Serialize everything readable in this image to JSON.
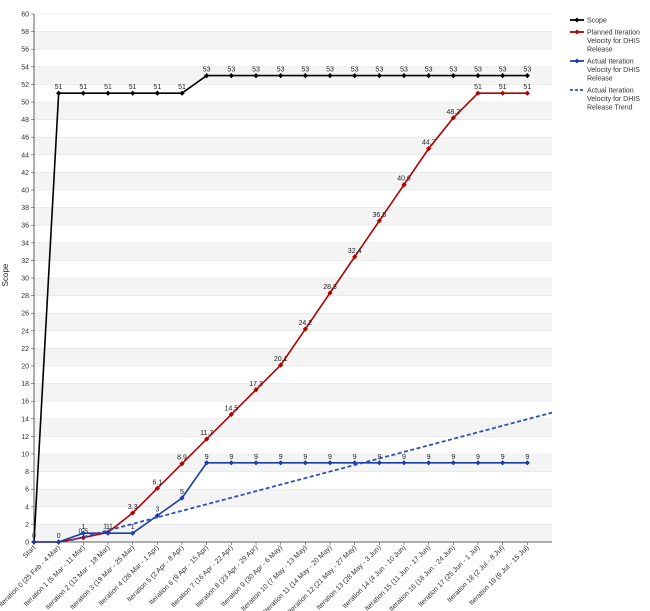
{
  "chart_data": {
    "type": "line",
    "title": "",
    "xlabel": "",
    "ylabel": "Scope",
    "ylim": [
      0,
      60
    ],
    "y_tick_step": 2,
    "grid": true,
    "legend_position": "right",
    "categories": [
      "Start",
      "Iteration 0 (25 Feb - 4 Mar)",
      "Iteration 1 (5 Mar - 11 Mar)",
      "Iteration 2 (12 Mar - 18 Mar)",
      "Iteration 3 (19 Mar - 25 Mar)",
      "Iteration 4 (26 Mar - 1 Apr)",
      "Iteration 5 (2 Apr - 8 Apr)",
      "Iteration 6 (9 Apr - 15 Apr)",
      "Iteration 7 (16 Apr - 22 Apr)",
      "Iteration 8 (23 Apr - 29 Apr)",
      "Iteration 9 (30 Apr - 6 May)",
      "Iteration 10 (7 May - 13 May)",
      "Iteration 11 (14 May - 20 May)",
      "Iteration 12 (21 May - 27 May)",
      "Iteration 13 (28 May - 3 Jun)",
      "Iteration 14 (4 Jun - 10 Jun)",
      "Iteration 15 (11 Jun - 17 Jun)",
      "Iteration 16 (18 Jun - 24 Jun)",
      "Iteration 17 (25 Jun - 1 Jul)",
      "Iteration 18 (2 Jul - 8 Jul)",
      "Iteration 19 (9 Jul - 15 Jul)"
    ],
    "series": [
      {
        "name": "Scope",
        "color": "#000000",
        "style": "solid",
        "values": [
          0,
          51,
          51,
          51,
          51,
          51,
          51,
          53,
          53,
          53,
          53,
          53,
          53,
          53,
          53,
          53,
          53,
          53,
          53,
          53,
          53
        ],
        "labels": [
          "0",
          "51",
          "51",
          "51",
          "51",
          "51",
          "51",
          "53",
          "53",
          "53",
          "53",
          "53",
          "53",
          "53",
          "53",
          "53",
          "53",
          "53",
          "53",
          "53",
          "53"
        ]
      },
      {
        "name": "Planned Iteration Velocity for DHIS Release",
        "color": "#b00000",
        "style": "solid",
        "values": [
          0,
          0,
          0.5,
          1.1,
          3.3,
          6.1,
          8.9,
          11.7,
          14.5,
          17.3,
          20.1,
          24.2,
          28.3,
          32.4,
          36.5,
          40.6,
          44.7,
          48.2,
          51,
          51,
          51
        ],
        "labels": [
          "",
          "0",
          "0.5",
          "1.1",
          "3.3",
          "6.1",
          "8.9",
          "11.7",
          "14.5",
          "17.3",
          "20.1",
          "24.2",
          "28.3",
          "32.4",
          "36.5",
          "40.6",
          "44.7",
          "48.2",
          "51",
          "51",
          "51"
        ]
      },
      {
        "name": "Actual Iteration Velocity for DHIS Release",
        "color": "#1a3fa8",
        "style": "solid",
        "values": [
          0,
          0,
          1,
          1,
          1,
          3,
          5,
          9,
          9,
          9,
          9,
          9,
          9,
          9,
          9,
          9,
          9,
          9,
          9,
          9,
          9
        ],
        "labels": [
          "",
          "",
          "1",
          "1",
          "1",
          "3",
          "5",
          "9",
          "9",
          "9",
          "9",
          "9",
          "9",
          "9",
          "9",
          "9",
          "9",
          "9",
          "9",
          "9",
          "9"
        ]
      },
      {
        "name": "Actual Iteration Velocity for DHIS Release Trend",
        "color": "#2a4fc8",
        "style": "dashed",
        "start": [
          1.5,
          0.2
        ],
        "end": [
          21.5,
          14.7
        ]
      }
    ]
  }
}
